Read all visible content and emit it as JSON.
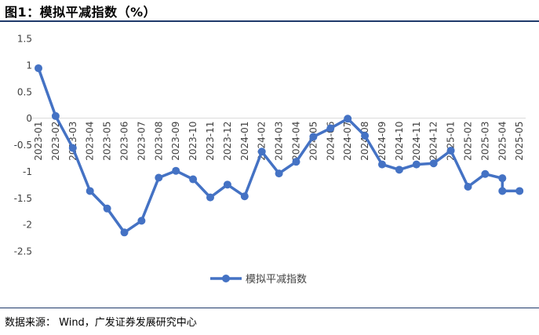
{
  "header": {
    "title": "图1：模拟平减指数（%）"
  },
  "footer": {
    "source": "数据来源： Wind，广发证券发展研究中心"
  },
  "chart_data": {
    "type": "line",
    "title": "",
    "xlabel": "",
    "ylabel": "",
    "ylim": [
      -2.5,
      1.5
    ],
    "yticks": [
      1.5,
      1,
      0.5,
      0,
      -0.5,
      -1,
      -1.5,
      -2,
      -2.5
    ],
    "grid": false,
    "legend_position": "bottom",
    "color": "#4472c4",
    "categories": [
      "2023-01",
      "2023-02",
      "2023-03",
      "2023-04",
      "2023-05",
      "2023-06",
      "2023-07",
      "2023-08",
      "2023-09",
      "2023-10",
      "2023-11",
      "2023-12",
      "2024-01",
      "2024-02",
      "2024-03",
      "2024-04",
      "2024-05",
      "2024-06",
      "2024-07",
      "2024-08",
      "2024-09",
      "2024-10",
      "2024-11",
      "2024-12",
      "2025-01",
      "2025-02",
      "2025-03",
      "2025-04",
      "2025-05"
    ],
    "series": [
      {
        "name": "模拟平减指数",
        "values": [
          0.94,
          0.04,
          -0.56,
          -1.37,
          -1.7,
          -2.15,
          -1.93,
          -1.12,
          -0.99,
          -1.15,
          -1.49,
          -1.25,
          -1.47,
          -0.63,
          -1.04,
          -0.82,
          -0.35,
          -0.19,
          -0.01,
          -0.33,
          -0.87,
          -0.97,
          -0.87,
          -0.85,
          -0.61,
          -1.29,
          -1.05,
          -1.37,
          -1.37
        ]
      }
    ],
    "extra_points": [
      {
        "category": "2025-04",
        "value": -1.13
      }
    ]
  }
}
